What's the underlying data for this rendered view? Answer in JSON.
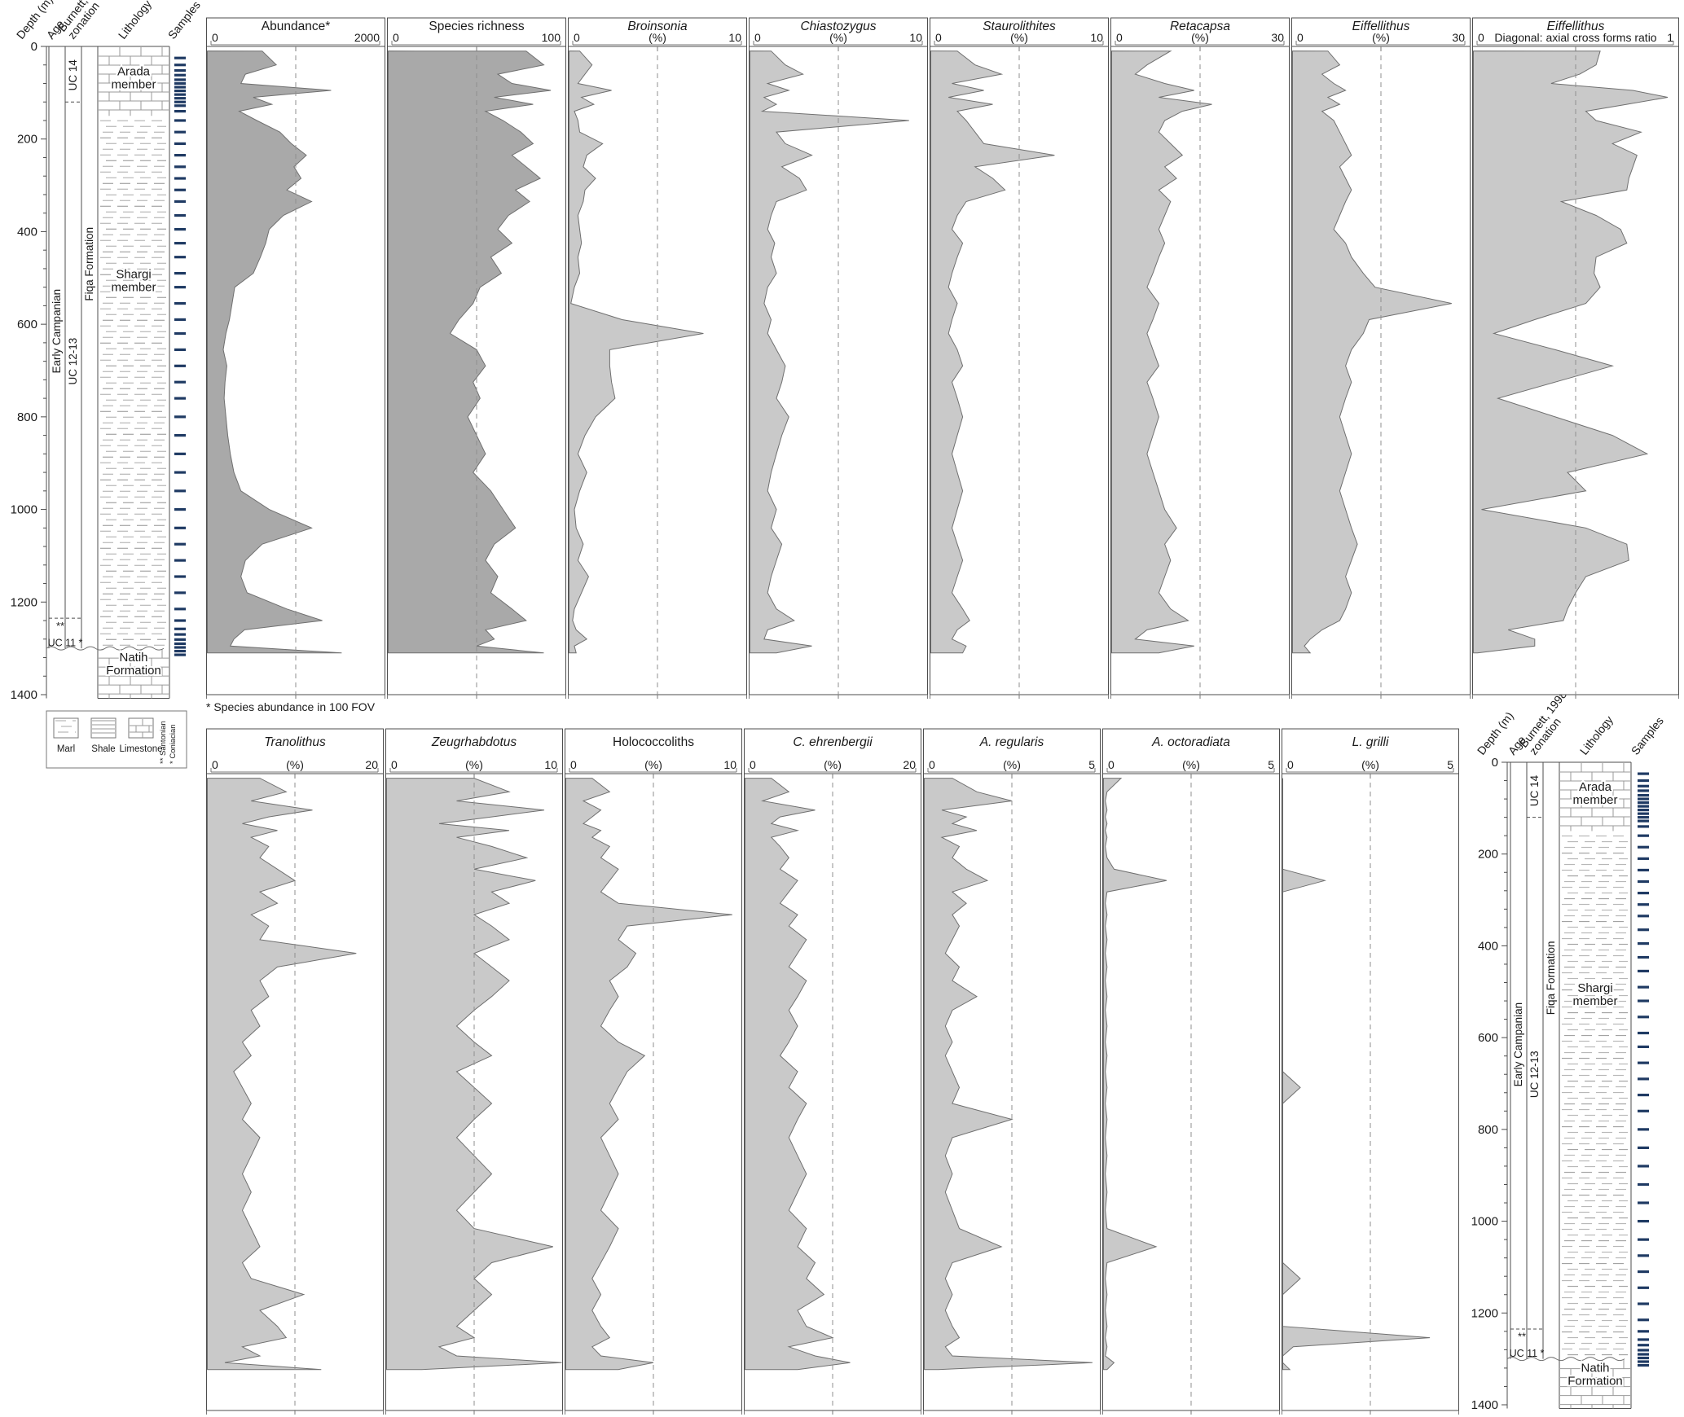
{
  "footnote": "* Species abundance in 100 FOV",
  "colors": {
    "sample_mark": "#1f3a63",
    "fill_dark": "#a9a9a9",
    "fill_light": "#c9c9c9",
    "area_outline": "#707070",
    "frame": "#4d4d4d",
    "pattern_line": "#9a9a9a",
    "marl_dash": "#b8b8b8",
    "dashed_guide": "#8f8f8f",
    "text": "#1a1a1a"
  },
  "strat": {
    "headers": {
      "depth": "Depth (m)",
      "age": "Age",
      "zonation_line1": "Burnett, 1998",
      "zonation_line2": "zonation",
      "lithology": "Lithology",
      "samples": "Samples"
    },
    "age_label": "Early Campanian",
    "formation_label": "Fiqa Formation",
    "zone_upper": "UC 14",
    "zone_mid": "UC 12-13",
    "zone_lower": "UC 11 *",
    "santonian_mark": "**",
    "members": [
      {
        "label": "Arada member",
        "depth": 62
      },
      {
        "label": "Shargi member",
        "depth": 500
      },
      {
        "label": "Natih Formation",
        "depth": 1328
      }
    ],
    "lithology": [
      {
        "type": "limestone",
        "from": 0,
        "to": 150
      },
      {
        "type": "marl",
        "from": 150,
        "to": 1300
      },
      {
        "type": "limestone",
        "from": 1300,
        "to": 1408
      }
    ],
    "unconformity_depth": 1300,
    "depth_axis": {
      "min": 0,
      "max": 1400,
      "major_step": 200,
      "minor_step": 40,
      "unit": "m"
    },
    "zone_boundary_dashed_depths": [
      120,
      1235
    ],
    "sample_depths": [
      25,
      40,
      52,
      62,
      72,
      80,
      88,
      96,
      104,
      112,
      120,
      128,
      140,
      160,
      185,
      210,
      235,
      260,
      285,
      310,
      335,
      365,
      395,
      425,
      455,
      490,
      520,
      555,
      590,
      620,
      655,
      690,
      725,
      760,
      800,
      840,
      880,
      920,
      960,
      1000,
      1040,
      1075,
      1110,
      1145,
      1180,
      1215,
      1240,
      1258,
      1270,
      1281,
      1290,
      1298,
      1306,
      1314
    ]
  },
  "legend": {
    "items": [
      {
        "label": "Marl",
        "pattern": "marl"
      },
      {
        "label": "Shale",
        "pattern": "shale"
      },
      {
        "label": "Limestone",
        "pattern": "limestone"
      }
    ],
    "notes": [
      "** Santonian",
      "* Coniacian"
    ]
  },
  "chart_data": {
    "type": "area",
    "orientation": "value-vs-depth, depth increases downward",
    "depth_axis": {
      "min": 0,
      "max": 1400
    },
    "depths_m": [
      10,
      40,
      60,
      80,
      95,
      110,
      125,
      140,
      160,
      185,
      210,
      235,
      260,
      285,
      310,
      335,
      365,
      395,
      425,
      455,
      490,
      520,
      555,
      590,
      620,
      655,
      690,
      725,
      760,
      800,
      840,
      880,
      920,
      960,
      1000,
      1040,
      1075,
      1110,
      1145,
      1180,
      1215,
      1240,
      1260,
      1280,
      1295,
      1310
    ],
    "top_row": [
      {
        "id": "abundance",
        "title": "Abundance*",
        "italic": false,
        "subtitle": "",
        "min": 0,
        "max": 2000,
        "tone": "dark",
        "values": [
          620,
          780,
          430,
          380,
          1400,
          520,
          730,
          360,
          560,
          820,
          950,
          1120,
          980,
          1060,
          900,
          1180,
          860,
          700,
          660,
          600,
          520,
          310,
          280,
          250,
          210,
          180,
          220,
          200,
          190,
          210,
          230,
          260,
          300,
          380,
          700,
          1180,
          620,
          430,
          380,
          450,
          900,
          1300,
          420,
          300,
          260,
          1520
        ]
      },
      {
        "id": "species-richness",
        "title": "Species richness",
        "italic": false,
        "subtitle": "",
        "min": 0,
        "max": 100,
        "tone": "dark",
        "values": [
          78,
          88,
          62,
          70,
          92,
          60,
          82,
          55,
          65,
          75,
          82,
          70,
          78,
          86,
          72,
          80,
          68,
          62,
          70,
          58,
          64,
          52,
          48,
          40,
          35,
          50,
          55,
          48,
          52,
          45,
          50,
          55,
          48,
          58,
          65,
          72,
          60,
          55,
          62,
          58,
          70,
          78,
          55,
          60,
          50,
          88
        ]
      },
      {
        "id": "broinsonia",
        "title": "Broinsonia",
        "italic": true,
        "subtitle": "(%)",
        "min": 0,
        "max": 10,
        "tone": "light",
        "values": [
          0.6,
          1.3,
          0.9,
          0.5,
          2.4,
          0.7,
          1.4,
          0.3,
          0.5,
          0.6,
          1.9,
          1.0,
          0.8,
          1.5,
          0.9,
          0.8,
          0.5,
          0.6,
          0.7,
          0.5,
          0.6,
          0.3,
          0.1,
          3.0,
          7.6,
          2.3,
          2.3,
          2.4,
          2.6,
          1.5,
          0.9,
          0.5,
          1.0,
          0.6,
          0.3,
          0.4,
          0.8,
          0.5,
          1.1,
          0.7,
          0.3,
          0.2,
          0.4,
          1.0,
          0.3,
          0.4
        ]
      },
      {
        "id": "chiastozygus",
        "title": "Chiastozygus",
        "italic": true,
        "subtitle": "(%)",
        "min": 0,
        "max": 10,
        "tone": "light",
        "values": [
          1.2,
          2.0,
          3.0,
          1.0,
          2.2,
          0.8,
          1.5,
          0.7,
          9.0,
          1.5,
          2.0,
          3.5,
          1.8,
          2.8,
          3.2,
          1.5,
          1.2,
          1.0,
          1.4,
          1.2,
          1.5,
          1.0,
          0.8,
          1.2,
          1.0,
          1.5,
          2.0,
          1.8,
          1.5,
          2.2,
          1.8,
          1.5,
          1.2,
          1.0,
          1.5,
          1.2,
          1.8,
          1.5,
          1.2,
          1.0,
          1.5,
          2.5,
          1.0,
          0.8,
          3.5,
          1.5
        ]
      },
      {
        "id": "staurolithites",
        "title": "Staurolithites",
        "italic": true,
        "subtitle": "(%)",
        "min": 0,
        "max": 10,
        "tone": "light",
        "values": [
          1.5,
          2.5,
          4.0,
          1.2,
          3.0,
          1.0,
          3.5,
          1.5,
          2.0,
          2.5,
          3.0,
          7.0,
          2.5,
          3.5,
          4.2,
          2.0,
          1.5,
          1.2,
          1.8,
          1.5,
          1.2,
          1.0,
          1.5,
          1.2,
          1.0,
          1.5,
          1.8,
          1.2,
          1.5,
          1.8,
          1.5,
          1.2,
          1.5,
          1.8,
          1.5,
          1.2,
          1.5,
          1.8,
          1.5,
          1.2,
          1.8,
          2.2,
          1.5,
          1.2,
          2.0,
          1.8
        ]
      },
      {
        "id": "retacapsa",
        "title": "Retacapsa",
        "italic": true,
        "subtitle": "(%)",
        "min": 0,
        "max": 30,
        "tone": "light",
        "values": [
          10,
          6,
          4,
          9,
          14,
          8,
          17,
          12,
          9,
          8,
          10,
          12,
          9,
          11,
          8,
          10,
          9,
          8,
          9,
          8,
          7,
          6,
          8,
          7,
          6,
          7,
          8,
          6,
          7,
          8,
          7,
          6,
          7,
          8,
          9,
          11,
          9,
          10,
          9,
          8,
          10,
          13,
          6,
          4,
          14,
          8
        ]
      },
      {
        "id": "eiffellithus-pct",
        "title": "Eiffellithus",
        "italic": true,
        "subtitle": "(%)",
        "min": 0,
        "max": 30,
        "tone": "light",
        "values": [
          6,
          8,
          5,
          7,
          9,
          6,
          8,
          5,
          7,
          8,
          9,
          10,
          8,
          9,
          10,
          9,
          8,
          7,
          9,
          10,
          12,
          14,
          27,
          13,
          12,
          10,
          9,
          10,
          9,
          8,
          9,
          10,
          9,
          8,
          9,
          10,
          11,
          10,
          9,
          10,
          9,
          8,
          5,
          3,
          2,
          3
        ]
      },
      {
        "id": "eiffellithus-ratio",
        "title": "Eiffellithus",
        "italic": true,
        "subtitle": "Diagonal: axial cross forms ratio",
        "min": 0,
        "max": 1,
        "tone": "light",
        "values": [
          0.62,
          0.6,
          0.52,
          0.38,
          0.78,
          0.95,
          0.75,
          0.55,
          0.6,
          0.82,
          0.68,
          0.8,
          0.78,
          0.76,
          0.75,
          0.43,
          0.6,
          0.72,
          0.75,
          0.6,
          0.59,
          0.62,
          0.55,
          0.3,
          0.1,
          0.4,
          0.68,
          0.4,
          0.12,
          0.4,
          0.68,
          0.85,
          0.46,
          0.55,
          0.04,
          0.55,
          0.75,
          0.76,
          0.55,
          0.5,
          0.46,
          0.44,
          0.17,
          0.3,
          0.3,
          0.02
        ]
      }
    ],
    "bottom_row": [
      {
        "id": "tranolithus",
        "title": "Tranolithus",
        "italic": true,
        "subtitle": "(%)",
        "min": 0,
        "max": 20,
        "tone": "light",
        "values": [
          6,
          9,
          5,
          12,
          7,
          4,
          8,
          5,
          7,
          6,
          8,
          10,
          6,
          8,
          5,
          7,
          6,
          17,
          8,
          6,
          7,
          5,
          6,
          4,
          5,
          3,
          4,
          5,
          4,
          6,
          5,
          4,
          5,
          4,
          5,
          6,
          4,
          5,
          11,
          6,
          8,
          9,
          4,
          6,
          2,
          13
        ]
      },
      {
        "id": "zeugrhabdotus",
        "title": "Zeugrhabdotus",
        "italic": true,
        "subtitle": "(%)",
        "min": 0,
        "max": 10,
        "tone": "light",
        "values": [
          5,
          7,
          4,
          9,
          6,
          3,
          7,
          4,
          6,
          8,
          5,
          8.5,
          6,
          7,
          5,
          6,
          7,
          5,
          6,
          7,
          6,
          5,
          4,
          5,
          6,
          4,
          5,
          6,
          5,
          4,
          5,
          6,
          5,
          4,
          5,
          9.5,
          6,
          5,
          6,
          5,
          4,
          5,
          3,
          4,
          10,
          2
        ]
      },
      {
        "id": "holococcoliths",
        "title": "Holococcoliths",
        "italic": false,
        "subtitle": "(%)",
        "min": 0,
        "max": 10,
        "tone": "light",
        "values": [
          1.5,
          2.5,
          1.0,
          2.0,
          1.5,
          1.0,
          2.0,
          1.5,
          2.5,
          2.0,
          3.0,
          2.5,
          2.0,
          3.0,
          9.5,
          3.5,
          3.0,
          4.0,
          3.5,
          2.5,
          3.0,
          2.5,
          2.0,
          3.0,
          4.5,
          3.5,
          3.0,
          2.5,
          3.0,
          2.0,
          2.5,
          3.0,
          2.5,
          2.0,
          3.0,
          2.5,
          2.0,
          1.5,
          2.0,
          1.5,
          2.0,
          2.5,
          1.5,
          2.0,
          5.0,
          3.0
        ]
      },
      {
        "id": "c-ehrenbergii",
        "title": "C. ehrenbergii",
        "italic": true,
        "subtitle": "(%)",
        "min": 0,
        "max": 20,
        "tone": "light",
        "values": [
          3,
          5,
          2,
          8,
          4,
          3,
          6,
          3,
          4,
          5,
          4,
          6,
          5,
          4,
          6,
          5,
          7,
          6,
          5,
          7,
          6,
          5,
          6,
          5,
          4,
          6,
          5,
          7,
          6,
          5,
          6,
          7,
          6,
          5,
          7,
          6,
          8,
          7,
          9,
          6,
          7,
          10,
          5,
          8,
          12,
          6
        ]
      },
      {
        "id": "a-regularis",
        "title": "A. regularis",
        "italic": true,
        "subtitle": "(%)",
        "min": 0,
        "max": 5,
        "tone": "light",
        "values": [
          0.8,
          1.5,
          2.5,
          0.5,
          1.2,
          0.8,
          1.5,
          0.5,
          1.0,
          0.8,
          1.2,
          1.8,
          0.8,
          1.2,
          0.8,
          1.0,
          0.8,
          0.6,
          1.0,
          0.8,
          1.5,
          0.8,
          0.6,
          0.8,
          0.6,
          0.8,
          1.0,
          0.8,
          2.5,
          0.8,
          0.6,
          0.8,
          0.6,
          0.8,
          1.0,
          2.2,
          0.8,
          0.6,
          0.8,
          0.6,
          0.8,
          1.0,
          0.6,
          0.8,
          4.8,
          0.4
        ]
      },
      {
        "id": "a-octoradiata",
        "title": "A. octoradiata",
        "italic": true,
        "subtitle": "(%)",
        "min": 0,
        "max": 5,
        "tone": "light",
        "values": [
          0.5,
          0.1,
          0.05,
          0.1,
          0.05,
          0.1,
          0.05,
          0.1,
          0.05,
          0.1,
          0.3,
          1.8,
          0.1,
          0.05,
          0.1,
          0.05,
          0.1,
          0.05,
          0.1,
          0.05,
          0.1,
          0.05,
          0.1,
          0.05,
          0.1,
          0.05,
          0.1,
          0.05,
          0.1,
          0.05,
          0.1,
          0.05,
          0.1,
          0.05,
          0.1,
          1.5,
          0.1,
          0.05,
          0.1,
          0.05,
          0.1,
          0.05,
          0.1,
          0.05,
          0.3,
          0.1
        ]
      },
      {
        "id": "l-grilli",
        "title": "L. grilli",
        "italic": true,
        "subtitle": "(%)",
        "min": 0,
        "max": 5,
        "tone": "light",
        "values": [
          0,
          0,
          0,
          0,
          0,
          0,
          0,
          0,
          0,
          0,
          0,
          1.2,
          0,
          0,
          0,
          0,
          0,
          0,
          0,
          0,
          0,
          0,
          0,
          0,
          0,
          0,
          0.5,
          0,
          0,
          0,
          0,
          0,
          0,
          0,
          0,
          0,
          0,
          0.5,
          0,
          0,
          0,
          4.2,
          0.3,
          0,
          0,
          0.2
        ]
      }
    ]
  }
}
